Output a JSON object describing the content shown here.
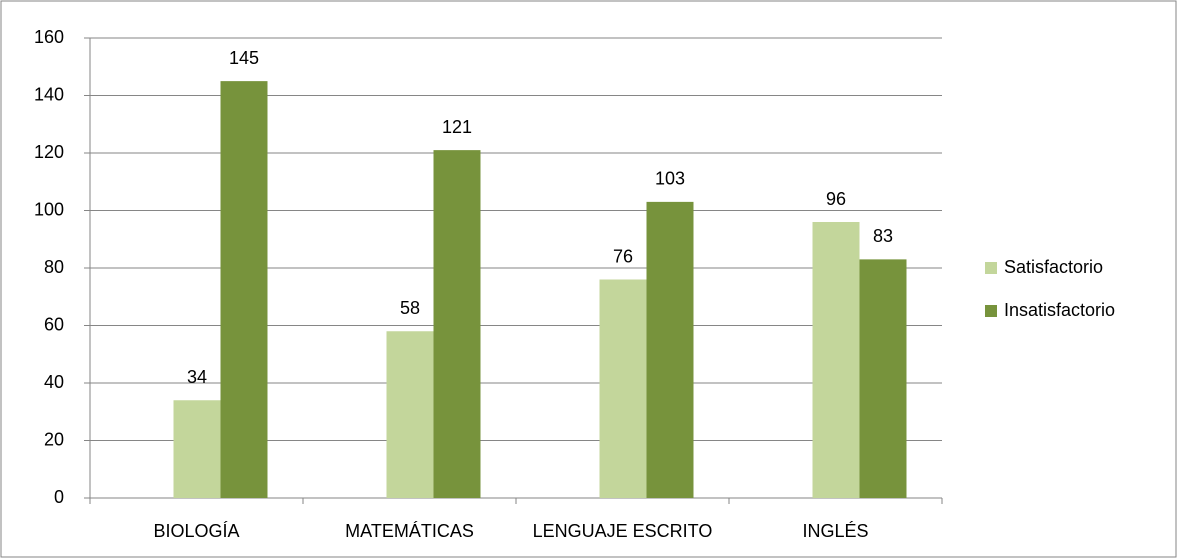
{
  "chart_data": {
    "type": "bar",
    "categories": [
      "BIOLOGÍA",
      "MATEMÁTICAS",
      "LENGUAJE ESCRITO",
      "INGLÉS"
    ],
    "series": [
      {
        "name": "Satisfactorio",
        "color": "#c3d69b",
        "values": [
          34,
          58,
          76,
          96
        ]
      },
      {
        "name": "Insatisfactorio",
        "color": "#77933c",
        "values": [
          145,
          121,
          103,
          83
        ]
      }
    ],
    "ylim": [
      0,
      160
    ],
    "yticks": [
      0,
      20,
      40,
      60,
      80,
      100,
      120,
      140,
      160
    ],
    "grid": true,
    "legend": "right"
  }
}
